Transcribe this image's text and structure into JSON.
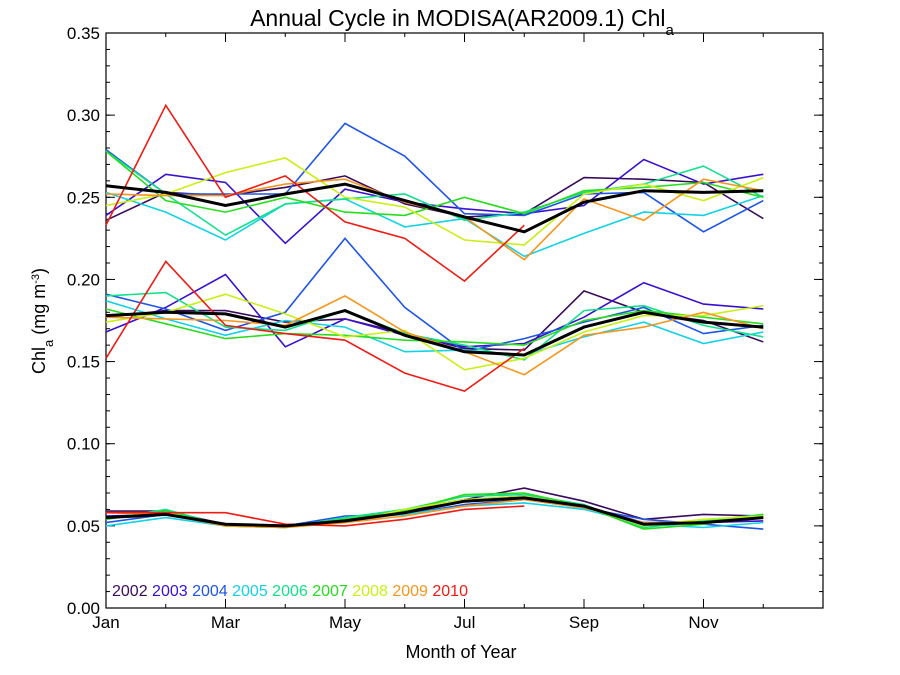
{
  "chart_data": {
    "type": "line",
    "title_main": "Annual Cycle in MODISA(AR2009.1) Chl",
    "title_sub": "a",
    "xlabel": "Month of Year",
    "ylabel_main": "Chl",
    "ylabel_sub": "a",
    "ylabel_unit": " (mg m",
    "ylabel_sup": "-3",
    "ylabel_close": ")",
    "xlim": [
      1,
      13
    ],
    "ylim": [
      0,
      0.35
    ],
    "x_ticks": [
      {
        "value": 1,
        "label": "Jan"
      },
      {
        "value": 3,
        "label": "Mar"
      },
      {
        "value": 5,
        "label": "May"
      },
      {
        "value": 7,
        "label": "Jul"
      },
      {
        "value": 9,
        "label": "Sep"
      },
      {
        "value": 11,
        "label": "Nov"
      }
    ],
    "y_ticks": [
      {
        "value": 0.0,
        "label": "0.00"
      },
      {
        "value": 0.05,
        "label": "0.05"
      },
      {
        "value": 0.1,
        "label": "0.10"
      },
      {
        "value": 0.15,
        "label": "0.15"
      },
      {
        "value": 0.2,
        "label": "0.20"
      },
      {
        "value": 0.25,
        "label": "0.25"
      },
      {
        "value": 0.3,
        "label": "0.30"
      },
      {
        "value": 0.35,
        "label": "0.35"
      }
    ],
    "grid": false,
    "legend_position": "bottom-left",
    "x": [
      1,
      2,
      3,
      4,
      5,
      6,
      7,
      8,
      9,
      10,
      11,
      12
    ],
    "series": [
      {
        "name": "2002",
        "color": "#3a0a5c",
        "groups": [
          [
            0.236,
            0.253,
            0.251,
            0.256,
            0.263,
            0.246,
            0.238,
            0.24,
            0.262,
            0.261,
            0.259,
            0.237
          ],
          [
            0.177,
            0.181,
            0.181,
            0.174,
            0.176,
            0.167,
            0.158,
            0.157,
            0.193,
            0.18,
            0.175,
            0.162
          ],
          [
            0.059,
            0.059,
            0.051,
            0.05,
            0.052,
            0.059,
            0.066,
            0.073,
            0.065,
            0.054,
            0.057,
            0.056
          ]
        ]
      },
      {
        "name": "2003",
        "color": "#3a10d0",
        "groups": [
          [
            0.239,
            0.264,
            0.259,
            0.222,
            0.255,
            0.247,
            0.243,
            0.24,
            0.245,
            0.273,
            0.258,
            0.264
          ],
          [
            0.168,
            0.183,
            0.203,
            0.159,
            0.176,
            0.166,
            0.159,
            0.161,
            0.177,
            0.198,
            0.185,
            0.182
          ],
          [
            0.056,
            0.057,
            0.051,
            0.05,
            0.053,
            0.06,
            0.066,
            0.068,
            0.062,
            0.052,
            0.052,
            0.053
          ]
        ]
      },
      {
        "name": "2004",
        "color": "#1e55e6",
        "groups": [
          [
            0.279,
            0.252,
            0.252,
            0.252,
            0.295,
            0.275,
            0.24,
            0.239,
            0.252,
            0.253,
            0.229,
            0.248
          ],
          [
            0.191,
            0.182,
            0.169,
            0.18,
            0.225,
            0.183,
            0.156,
            0.164,
            0.174,
            0.183,
            0.167,
            0.172
          ],
          [
            0.052,
            0.057,
            0.051,
            0.05,
            0.056,
            0.057,
            0.063,
            0.066,
            0.061,
            0.054,
            0.051,
            0.048
          ]
        ]
      },
      {
        "name": "2005",
        "color": "#14d2e6",
        "groups": [
          [
            0.253,
            0.241,
            0.224,
            0.246,
            0.249,
            0.232,
            0.237,
            0.214,
            0.228,
            0.241,
            0.239,
            0.251
          ],
          [
            0.187,
            0.176,
            0.166,
            0.175,
            0.171,
            0.156,
            0.157,
            0.154,
            0.165,
            0.174,
            0.161,
            0.168
          ],
          [
            0.05,
            0.055,
            0.05,
            0.049,
            0.054,
            0.057,
            0.062,
            0.064,
            0.06,
            0.051,
            0.049,
            0.052
          ]
        ]
      },
      {
        "name": "2006",
        "color": "#14e08c",
        "groups": [
          [
            0.278,
            0.252,
            0.227,
            0.246,
            0.249,
            0.252,
            0.236,
            0.241,
            0.253,
            0.258,
            0.269,
            0.25
          ],
          [
            0.19,
            0.192,
            0.171,
            0.169,
            0.181,
            0.167,
            0.16,
            0.151,
            0.181,
            0.184,
            0.172,
            0.165
          ],
          [
            0.054,
            0.06,
            0.05,
            0.049,
            0.055,
            0.06,
            0.068,
            0.069,
            0.063,
            0.049,
            0.053,
            0.057
          ]
        ]
      },
      {
        "name": "2007",
        "color": "#28dc1e",
        "groups": [
          [
            0.278,
            0.248,
            0.241,
            0.25,
            0.241,
            0.239,
            0.25,
            0.24,
            0.254,
            0.256,
            0.259,
            0.25
          ],
          [
            0.182,
            0.173,
            0.164,
            0.167,
            0.166,
            0.163,
            0.162,
            0.16,
            0.175,
            0.181,
            0.177,
            0.173
          ],
          [
            0.054,
            0.059,
            0.05,
            0.049,
            0.054,
            0.059,
            0.069,
            0.07,
            0.062,
            0.048,
            0.051,
            0.057
          ]
        ]
      },
      {
        "name": "2008",
        "color": "#c8f014",
        "groups": [
          [
            0.245,
            0.252,
            0.265,
            0.274,
            0.25,
            0.244,
            0.224,
            0.221,
            0.252,
            0.258,
            0.248,
            0.262
          ],
          [
            0.174,
            0.18,
            0.191,
            0.179,
            0.165,
            0.169,
            0.145,
            0.152,
            0.168,
            0.178,
            0.178,
            0.184
          ],
          [
            0.055,
            0.058,
            0.05,
            0.049,
            0.052,
            0.06,
            0.066,
            0.068,
            0.062,
            0.05,
            0.054,
            0.056
          ]
        ]
      },
      {
        "name": "2009",
        "color": "#f5961e",
        "groups": [
          [
            0.252,
            0.251,
            0.251,
            0.258,
            0.261,
            0.247,
            0.238,
            0.212,
            0.249,
            0.236,
            0.261,
            0.254
          ],
          [
            0.177,
            0.176,
            0.175,
            0.172,
            0.19,
            0.168,
            0.156,
            0.142,
            0.166,
            0.171,
            0.18,
            0.17
          ],
          [
            0.058,
            0.057,
            0.05,
            0.049,
            0.052,
            0.056,
            0.062,
            0.066,
            0.061,
            0.052,
            0.052,
            0.055
          ]
        ]
      },
      {
        "name": "2010",
        "color": "#ee1c14",
        "groups": [
          [
            0.233,
            0.306,
            0.25,
            0.263,
            0.235,
            0.225,
            0.199,
            0.233
          ],
          [
            0.152,
            0.211,
            0.172,
            0.167,
            0.163,
            0.143,
            0.132,
            0.158
          ],
          [
            0.058,
            0.058,
            0.058,
            0.051,
            0.05,
            0.054,
            0.06,
            0.062
          ]
        ]
      },
      {
        "name": "",
        "color": "#000000",
        "groups": [
          [
            0.257,
            0.253,
            0.245,
            0.252,
            0.258,
            0.248,
            0.238,
            0.229,
            0.247,
            0.254,
            0.253,
            0.254
          ],
          [
            0.178,
            0.18,
            0.179,
            0.171,
            0.181,
            0.166,
            0.156,
            0.154,
            0.171,
            0.18,
            0.174,
            0.171
          ],
          [
            0.055,
            0.057,
            0.051,
            0.05,
            0.053,
            0.058,
            0.065,
            0.067,
            0.062,
            0.051,
            0.052,
            0.055
          ]
        ]
      }
    ]
  }
}
